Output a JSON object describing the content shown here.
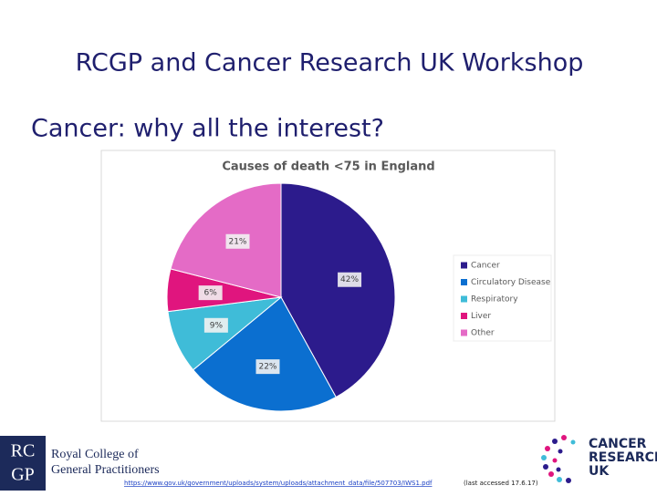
{
  "slide": {
    "title": "RCGP and Cancer Research UK Workshop",
    "subtitle": "Cancer: why all the interest?"
  },
  "chart_data": {
    "type": "pie",
    "title": "Causes of death <75 in England",
    "categories": [
      "Cancer",
      "Circulatory Disease",
      "Respiratory",
      "Liver",
      "Other"
    ],
    "values": [
      42,
      22,
      9,
      6,
      21
    ],
    "value_labels": [
      "42%",
      "22%",
      "9%",
      "6%",
      "21%"
    ],
    "colors": [
      "#2c1b8c",
      "#0b6fd0",
      "#3fbcd8",
      "#e0157e",
      "#e46bc6"
    ],
    "legend": "right"
  },
  "footer": {
    "rcgp_mark": [
      "RC",
      "GP"
    ],
    "rcgp_name": [
      "Royal College of",
      "General Practitioners"
    ],
    "source_link": "https://www.gov.uk/government/uploads/system/uploads/attachment_data/file/507703/IWS1.pdf",
    "source_note": "(last accessed 17.6.17)",
    "cruk_name": [
      "CANCER",
      "RESEARCH",
      "UK"
    ]
  }
}
